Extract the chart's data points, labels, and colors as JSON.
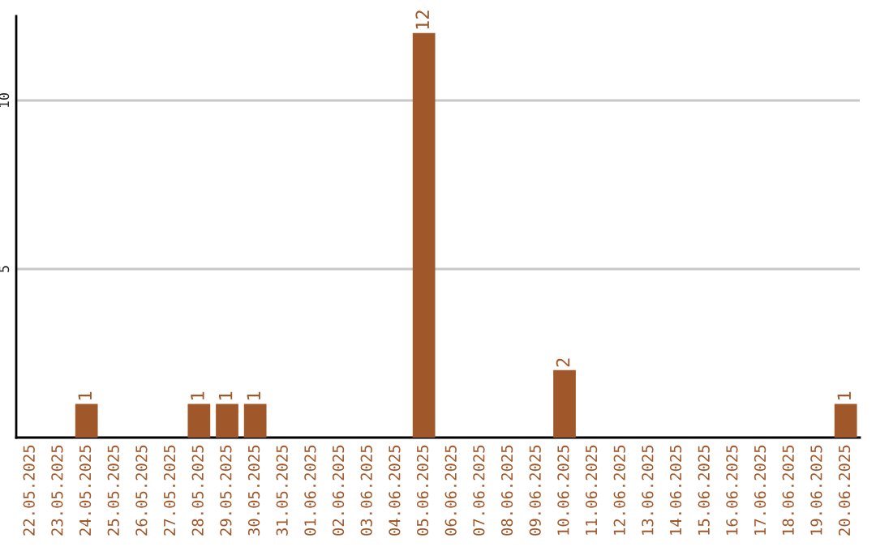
{
  "chart_data": {
    "type": "bar",
    "categories": [
      "22.05.2025",
      "23.05.2025",
      "24.05.2025",
      "25.05.2025",
      "26.05.2025",
      "27.05.2025",
      "28.05.2025",
      "29.05.2025",
      "30.05.2025",
      "31.05.2025",
      "01.06.2025",
      "02.06.2025",
      "03.06.2025",
      "04.06.2025",
      "05.06.2025",
      "06.06.2025",
      "07.06.2025",
      "08.06.2025",
      "09.06.2025",
      "10.06.2025",
      "11.06.2025",
      "12.06.2025",
      "13.06.2025",
      "14.06.2025",
      "15.06.2025",
      "16.06.2025",
      "17.06.2025",
      "18.06.2025",
      "19.06.2025",
      "20.06.2025"
    ],
    "values": [
      0,
      0,
      1,
      0,
      0,
      0,
      1,
      1,
      1,
      0,
      0,
      0,
      0,
      0,
      12,
      0,
      0,
      0,
      0,
      2,
      0,
      0,
      0,
      0,
      0,
      0,
      0,
      0,
      0,
      1
    ],
    "value_labels": [
      null,
      null,
      "1",
      null,
      null,
      null,
      "1",
      "1",
      "1",
      null,
      null,
      null,
      null,
      null,
      "12",
      null,
      null,
      null,
      null,
      "2",
      null,
      null,
      null,
      null,
      null,
      null,
      null,
      null,
      null,
      "1"
    ],
    "color": "#a0582a",
    "ylim": [
      0,
      12.5
    ],
    "yticks": [
      5,
      10
    ],
    "grid": "y"
  }
}
